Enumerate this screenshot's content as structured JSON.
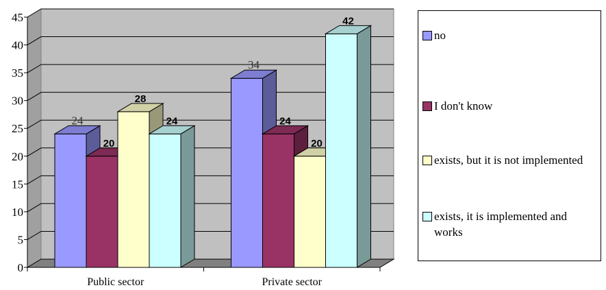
{
  "chart_data": {
    "type": "bar",
    "style": "3d-clustered-column",
    "categories": [
      "Public sector",
      "Private sector"
    ],
    "series": [
      {
        "name": "no",
        "values": [
          24,
          34
        ],
        "color": "#9999ff",
        "label_bold": false
      },
      {
        "name": "I don't know",
        "values": [
          20,
          24
        ],
        "color": "#993366",
        "label_bold": true
      },
      {
        "name": "exists, but it is not implemented",
        "values": [
          28,
          20
        ],
        "color": "#ffffcc",
        "label_bold": true
      },
      {
        "name": "exists, it is implemented and works",
        "values": [
          24,
          42
        ],
        "color": "#ccffff",
        "label_bold": true
      }
    ],
    "ylim": [
      0,
      45
    ],
    "yticks": [
      0,
      5,
      10,
      15,
      20,
      25,
      30,
      35,
      40,
      45
    ],
    "grid": true,
    "legend_position": "right",
    "wall_color": "#c0c0c0"
  }
}
